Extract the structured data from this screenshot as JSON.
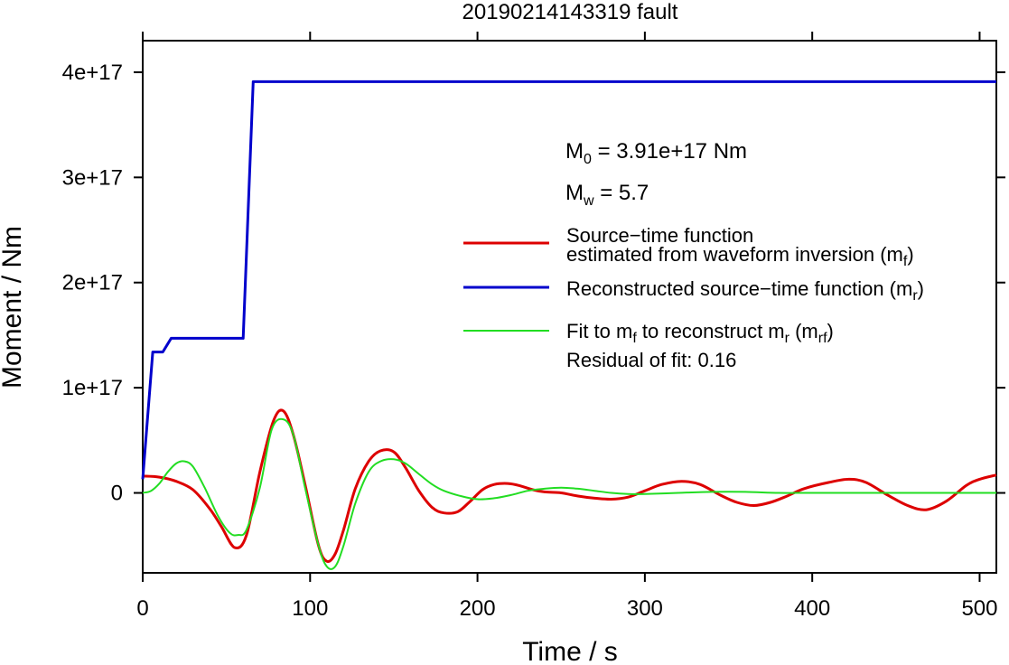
{
  "chart_data": {
    "type": "line",
    "title": "20190214143319 fault",
    "xlabel": "Time / s",
    "ylabel": "Moment / Nm",
    "xlim": [
      0,
      510
    ],
    "ylim": [
      -7.6e+16,
      4.3e+17
    ],
    "x_ticks": [
      0,
      100,
      200,
      300,
      400,
      500
    ],
    "x_tick_labels": [
      "0",
      "100",
      "200",
      "300",
      "400",
      "500"
    ],
    "y_ticks": [
      0,
      1e+17,
      2e+17,
      3e+17,
      4e+17
    ],
    "y_tick_labels": [
      "0",
      "1e+17",
      "2e+17",
      "3e+17",
      "4e+17"
    ],
    "grid": false,
    "legend_position": "right",
    "annotations": {
      "m0": {
        "prefix": "M",
        "sub": "0",
        "text": " = 3.91e+17 Nm"
      },
      "mw": {
        "prefix": "M",
        "sub": "w",
        "text": " = 5.7"
      },
      "residual": "Residual of fit: 0.16"
    },
    "series": [
      {
        "name": "Source−time function estimated from waveform inversion (m_f)",
        "color": "#dd0000",
        "x": [
          0,
          10,
          20,
          30,
          40,
          47,
          55,
          62,
          70,
          78,
          84,
          90,
          97,
          105,
          110,
          115,
          120,
          127,
          135,
          142,
          150,
          157,
          165,
          173,
          180,
          188,
          195,
          203,
          210,
          218,
          225,
          233,
          240,
          250,
          260,
          270,
          280,
          290,
          300,
          310,
          322,
          333,
          345,
          355,
          365,
          375,
          385,
          395,
          410,
          422,
          432,
          445,
          457,
          468,
          480,
          492,
          500,
          510
        ],
        "values": [
          1.6e+16,
          1.5e+16,
          1.1e+16,
          3000000000000000.0,
          -1.5e+16,
          -3.2e+16,
          -5.2e+16,
          -4e+16,
          2e+16,
          6.8e+16,
          7.8e+16,
          5.5e+16,
          8000000000000000.0,
          -5e+16,
          -6.5e+16,
          -5.8e+16,
          -3.5e+16,
          4000000000000000.0,
          3e+16,
          4e+16,
          3.9e+16,
          2.4e+16,
          2000000000000000.0,
          -1.4e+16,
          -1.9e+16,
          -1.8e+16,
          -9000000000000000.0,
          3000000000000000.0,
          8000000000000000.0,
          9000000000000000.0,
          7000000000000000.0,
          3000000000000000.0,
          1000000000000000.0,
          0,
          -3000000000000000.0,
          -5000000000000000.0,
          -6000000000000000.0,
          -4000000000000000.0,
          2000000000000000.0,
          8000000000000000.0,
          1.1e+16,
          8000000000000000.0,
          -2000000000000000.0,
          -9000000000000000.0,
          -1.2e+16,
          -9000000000000000.0,
          -3000000000000000.0,
          4000000000000000.0,
          1e+16,
          1.3e+16,
          1e+16,
          -2000000000000000.0,
          -1.2e+16,
          -1.6e+16,
          -8000000000000000.0,
          7000000000000000.0,
          1.3e+16,
          1.7e+16
        ]
      },
      {
        "name": "Reconstructed source−time function (m_r)",
        "color": "#0000cc",
        "x": [
          0,
          6,
          12,
          17,
          18,
          60,
          66,
          510
        ],
        "values": [
          1.3e+16,
          1.34e+17,
          1.34e+17,
          1.47e+17,
          1.47e+17,
          1.47e+17,
          3.91e+17,
          3.91e+17
        ]
      },
      {
        "name": "Fit to m_f to reconstruct m_r (m_rf)",
        "color": "#22dd22",
        "x": [
          0,
          5,
          10,
          15,
          20,
          25,
          30,
          37,
          45,
          52,
          57,
          62,
          70,
          77,
          84,
          90,
          97,
          105,
          110,
          115,
          120,
          127,
          135,
          142,
          150,
          157,
          165,
          173,
          180,
          190,
          200,
          210,
          220,
          230,
          240,
          250,
          260,
          270,
          280,
          290,
          300,
          320,
          340,
          360,
          380,
          400,
          440,
          480,
          510
        ],
        "values": [
          0,
          2000000000000000.0,
          9000000000000000.0,
          2e+16,
          2.8e+16,
          3e+16,
          2.5e+16,
          5000000000000000.0,
          -2.2e+16,
          -3.8e+16,
          -4e+16,
          -3.5e+16,
          5000000000000000.0,
          6e+16,
          7e+16,
          5.5e+16,
          5000000000000000.0,
          -5e+16,
          -7e+16,
          -7e+16,
          -5e+16,
          -1e+16,
          2e+16,
          3e+16,
          3.2e+16,
          2.8e+16,
          1.8e+16,
          8000000000000000.0,
          2000000000000000.0,
          -3000000000000000.0,
          -6000000000000000.0,
          -5000000000000000.0,
          -2000000000000000.0,
          2000000000000000.0,
          4000000000000000.0,
          5000000000000000.0,
          4000000000000000.0,
          2000000000000000.0,
          0,
          -1000000000000000.0,
          -1000000000000000.0,
          0,
          1000000000000000.0,
          1000000000000000.0,
          0,
          0,
          0,
          0,
          0
        ]
      }
    ],
    "legend": [
      {
        "line1": "Source−time function",
        "line2": "estimated from waveform inversion (m",
        "line2_sub": "f",
        "line2_end": ")"
      },
      {
        "line1": "Reconstructed source−time function (m",
        "line1_sub": "r",
        "line1_end": ")"
      },
      {
        "line1": "Fit to m",
        "line1_sub": "f",
        "line1_mid": " to reconstruct m",
        "line1_sub2": "r",
        "line1_mid2": " (m",
        "line1_sub3": "rf",
        "line1_end": ")"
      }
    ]
  }
}
